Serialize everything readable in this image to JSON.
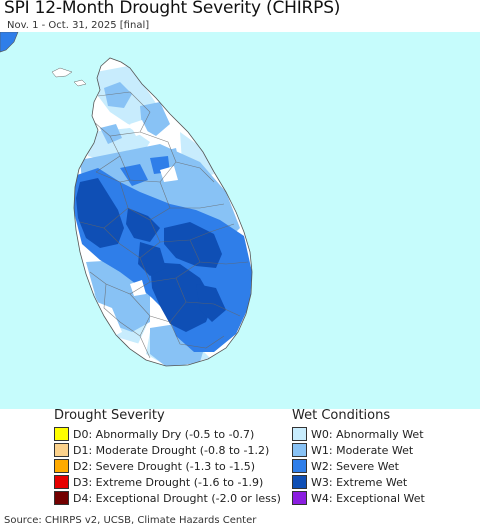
{
  "title": "SPI 12-Month Drought Severity (CHIRPS)",
  "subtitle": "Nov. 1 - Oct. 31, 2025 [final]",
  "map": {
    "region": "Sri Lanka",
    "colors": {
      "ocean": "#c6fcfc",
      "land": "#ffffff",
      "W0": "#c8ecfd",
      "W1": "#88c2f5",
      "W2": "#2f7ee9",
      "W3": "#0f4fb5",
      "border": "#777777"
    }
  },
  "legend": {
    "drought": {
      "heading": "Drought Severity",
      "items": [
        {
          "code": "D0",
          "label": "D0: Abnormally Dry (-0.5 to -0.7)",
          "color": "#ffff00"
        },
        {
          "code": "D1",
          "label": "D1: Moderate Drought (-0.8 to -1.2)",
          "color": "#fcd28c"
        },
        {
          "code": "D2",
          "label": "D2: Severe Drought (-1.3 to -1.5)",
          "color": "#ffaa00"
        },
        {
          "code": "D3",
          "label": "D3: Extreme Drought (-1.6 to -1.9)",
          "color": "#e60000"
        },
        {
          "code": "D4",
          "label": "D4: Exceptional Drought (-2.0 or less)",
          "color": "#730000"
        }
      ]
    },
    "wet": {
      "heading": "Wet Conditions",
      "items": [
        {
          "code": "W0",
          "label": "W0: Abnormally Wet",
          "color": "#c8ecfd"
        },
        {
          "code": "W1",
          "label": "W1: Moderate Wet",
          "color": "#88c2f5"
        },
        {
          "code": "W2",
          "label": "W2: Severe Wet",
          "color": "#2f7ee9"
        },
        {
          "code": "W3",
          "label": "W3: Extreme Wet",
          "color": "#0f4fb5"
        },
        {
          "code": "W4",
          "label": "W4: Exceptional Wet",
          "color": "#8b1ee0"
        }
      ]
    }
  },
  "source": "Source: CHIRPS v2, UCSB, Climate Hazards Center"
}
